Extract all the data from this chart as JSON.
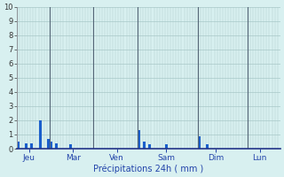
{
  "title": "",
  "xlabel": "Précipitations 24h ( mm )",
  "ylabel": "",
  "ylim": [
    0,
    10
  ],
  "yticks": [
    0,
    1,
    2,
    3,
    4,
    5,
    6,
    7,
    8,
    9,
    10
  ],
  "background_color": "#d8f0f0",
  "bar_color": "#1a5fcc",
  "grid_color_h": "#a8c8c8",
  "grid_color_v": "#a8c8c8",
  "day_sep_color": "#556677",
  "bottom_line_color": "#223388",
  "day_labels": [
    "Jeu",
    "Mar",
    "Ven",
    "Sam",
    "Dim",
    "Lun"
  ],
  "day_tick_positions": [
    4,
    20,
    36,
    54,
    72,
    88
  ],
  "day_sep_positions": [
    0,
    12,
    28,
    44,
    66,
    84
  ],
  "num_bars": 96,
  "bar_values": [
    0.5,
    0.0,
    0.0,
    0.4,
    0.0,
    0.4,
    0.0,
    0.0,
    2.0,
    0.0,
    0.0,
    0.7,
    0.5,
    0.0,
    0.4,
    0.0,
    0.0,
    0.0,
    0.0,
    0.3,
    0.0,
    0.0,
    0.0,
    0.0,
    0.0,
    0.0,
    0.0,
    0.0,
    0.0,
    0.0,
    0.0,
    0.0,
    0.0,
    0.0,
    0.0,
    0.0,
    0.0,
    0.0,
    0.0,
    0.0,
    0.0,
    0.0,
    0.0,
    0.0,
    1.3,
    0.0,
    0.5,
    0.0,
    0.3,
    0.0,
    0.0,
    0.0,
    0.0,
    0.0,
    0.3,
    0.0,
    0.0,
    0.0,
    0.0,
    0.0,
    0.0,
    0.0,
    0.0,
    0.0,
    0.0,
    0.0,
    0.9,
    0.0,
    0.0,
    0.3,
    0.0,
    0.0,
    0.0,
    0.0,
    0.0,
    0.0,
    0.0,
    0.0,
    0.0,
    0.0,
    0.0,
    0.0,
    0.0,
    0.0,
    0.0,
    0.0,
    0.0,
    0.0,
    0.0,
    0.0,
    0.0,
    0.0,
    0.0,
    0.0,
    0.0,
    0.0
  ],
  "ytick_fontsize": 6,
  "xtick_fontsize": 6.5,
  "xlabel_fontsize": 7,
  "xlabel_color": "#2244aa",
  "ytick_color": "#333333"
}
